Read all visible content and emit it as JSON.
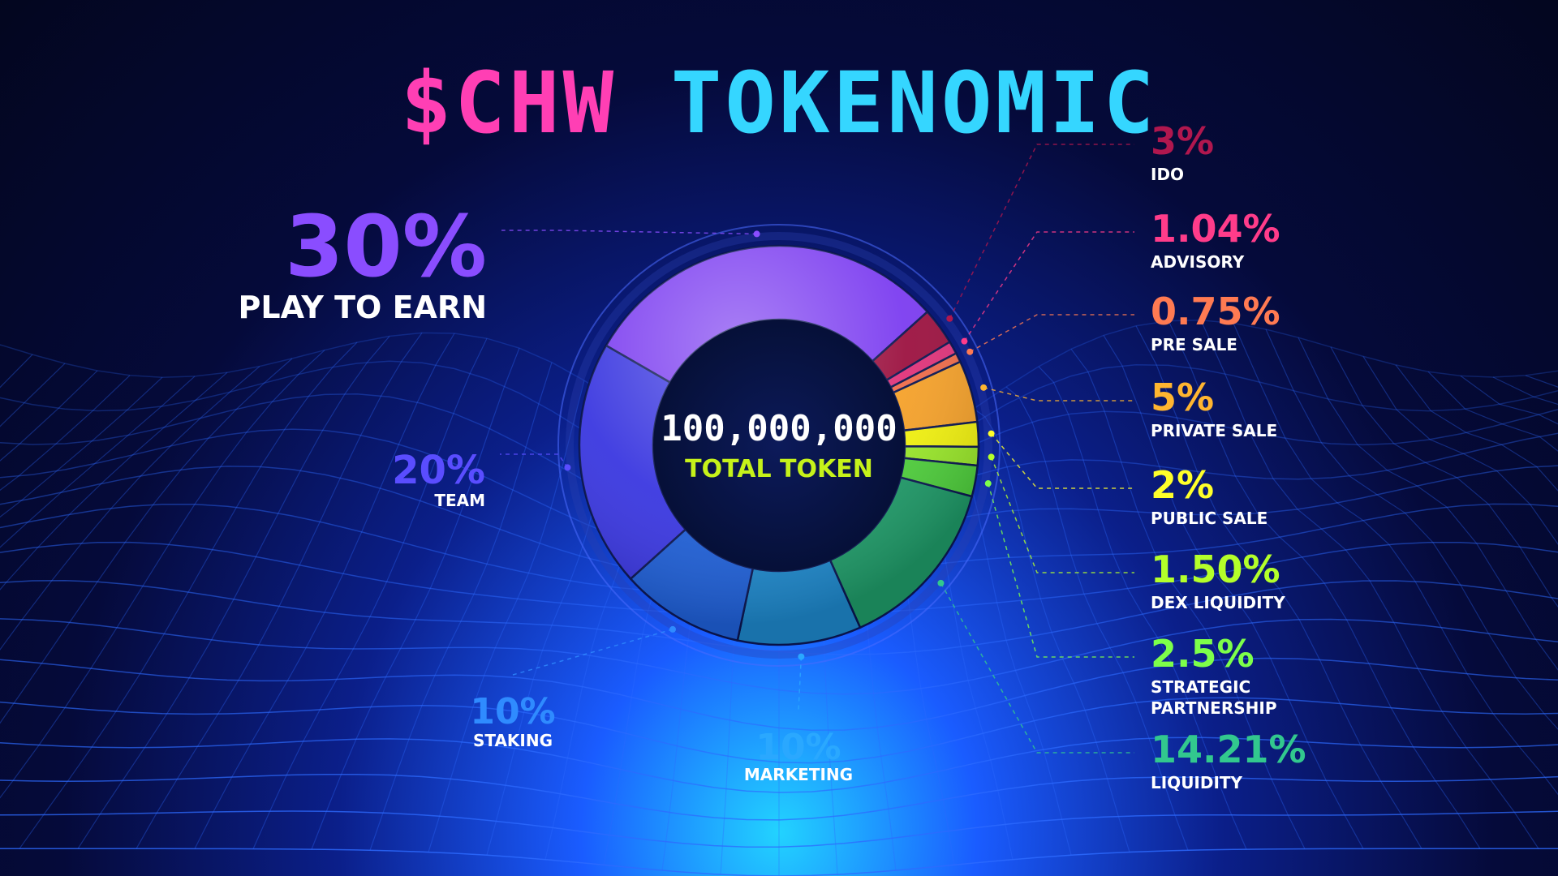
{
  "title": {
    "part1": "$CHW",
    "part2": "TOKENOMIC"
  },
  "center": {
    "total": "100,000,000",
    "label": "TOTAL TOKEN"
  },
  "colors": {
    "title_pink": "#ff3fb4",
    "title_cyan": "#35d6ff",
    "center_label": "#c6f21a"
  },
  "chart_data": {
    "type": "pie",
    "slices": [
      {
        "name": "PLAY TO EARN",
        "name2": "",
        "display": "30%",
        "value": 30,
        "color": "#7b3cf0",
        "pct_color": "#8a4dff"
      },
      {
        "name": "IDO",
        "name2": "",
        "display": "3%",
        "value": 3,
        "color": "#9c1240",
        "pct_color": "#b0174e"
      },
      {
        "name": "ADVISORY",
        "name2": "",
        "display": "1.04%",
        "value": 1.04,
        "color": "#e0337a",
        "pct_color": "#ff3c8a"
      },
      {
        "name": "PRE SALE",
        "name2": "",
        "display": "0.75%",
        "value": 0.75,
        "color": "#f06c4a",
        "pct_color": "#ff7a52"
      },
      {
        "name": "PRIVATE SALE",
        "name2": "",
        "display": "5%",
        "value": 5,
        "color": "#f5a12a",
        "pct_color": "#ffb530"
      },
      {
        "name": "PUBLIC SALE",
        "name2": "",
        "display": "2%",
        "value": 2,
        "color": "#f2f20f",
        "pct_color": "#ffff2a"
      },
      {
        "name": "DEX LIQUIDITY",
        "name2": "",
        "display": "1.50%",
        "value": 1.5,
        "color": "#9ae82a",
        "pct_color": "#b4ff2a"
      },
      {
        "name": "STRATEGIC",
        "name2": "PARTNERSHIP",
        "display": "2.5%",
        "value": 2.5,
        "color": "#4fcf3c",
        "pct_color": "#7dff4a"
      },
      {
        "name": "LIQUIDITY",
        "name2": "",
        "display": "14.21%",
        "value": 14.21,
        "color": "#1f9a68",
        "pct_color": "#32c88e"
      },
      {
        "name": "MARKETING",
        "name2": "",
        "display": "10%",
        "value": 10,
        "color": "#1d86c9",
        "pct_color": "#2aa8ff"
      },
      {
        "name": "STAKING",
        "name2": "",
        "display": "10%",
        "value": 10,
        "color": "#1f5fd6",
        "pct_color": "#2f8bff"
      },
      {
        "name": "TEAM",
        "name2": "",
        "display": "20%",
        "value": 20,
        "color": "#3a37e0",
        "pct_color": "#5a4dff"
      }
    ]
  }
}
